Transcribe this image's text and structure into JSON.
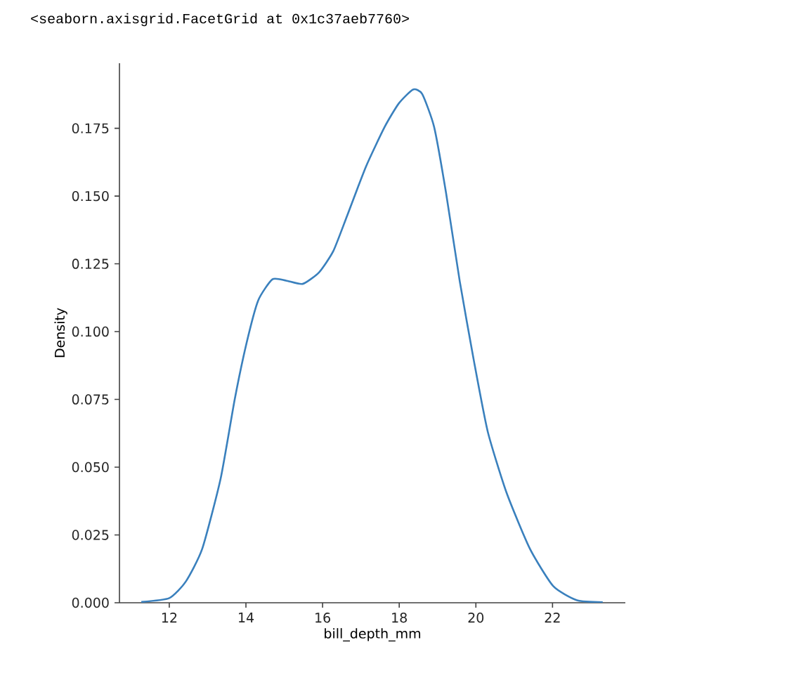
{
  "chart_data": {
    "type": "line",
    "annotations": [
      "<seaborn.axisgrid.FacetGrid at 0x1c37aeb7760>"
    ],
    "xlabel": "bill_depth_mm",
    "ylabel": "Density",
    "x": [
      11.27,
      12.0,
      12.43,
      12.86,
      13.34,
      13.71,
      14.02,
      14.32,
      14.69,
      15.05,
      15.48,
      15.91,
      16.28,
      16.64,
      17.13,
      17.62,
      17.99,
      18.36,
      18.6,
      18.91,
      19.22,
      19.58,
      19.95,
      20.31,
      20.8,
      21.41,
      22.02,
      22.64,
      23.31
    ],
    "series": [
      {
        "color": "#3a80bd",
        "values": [
          0.0003,
          0.0017,
          0.0078,
          0.0199,
          0.0458,
          0.0752,
          0.096,
          0.1115,
          0.1193,
          0.1188,
          0.1176,
          0.1219,
          0.1297,
          0.1427,
          0.1608,
          0.1755,
          0.1842,
          0.1893,
          0.1876,
          0.1755,
          0.1513,
          0.1185,
          0.0891,
          0.0631,
          0.0406,
          0.0199,
          0.0061,
          0.0009,
          0.0002
        ]
      }
    ],
    "xlim": [
      10.7,
      23.9
    ],
    "ylim": [
      0,
      0.199
    ],
    "xticks": [
      12,
      14,
      16,
      18,
      20,
      22
    ],
    "yticks": [
      {
        "value": 0,
        "label": "0.000"
      },
      {
        "value": 0.025,
        "label": "0.025"
      },
      {
        "value": 0.05,
        "label": "0.050"
      },
      {
        "value": 0.075,
        "label": "0.075"
      },
      {
        "value": 0.1,
        "label": "0.100"
      },
      {
        "value": 0.125,
        "label": "0.125"
      },
      {
        "value": 0.15,
        "label": "0.150"
      },
      {
        "value": 0.175,
        "label": "0.175"
      }
    ]
  }
}
